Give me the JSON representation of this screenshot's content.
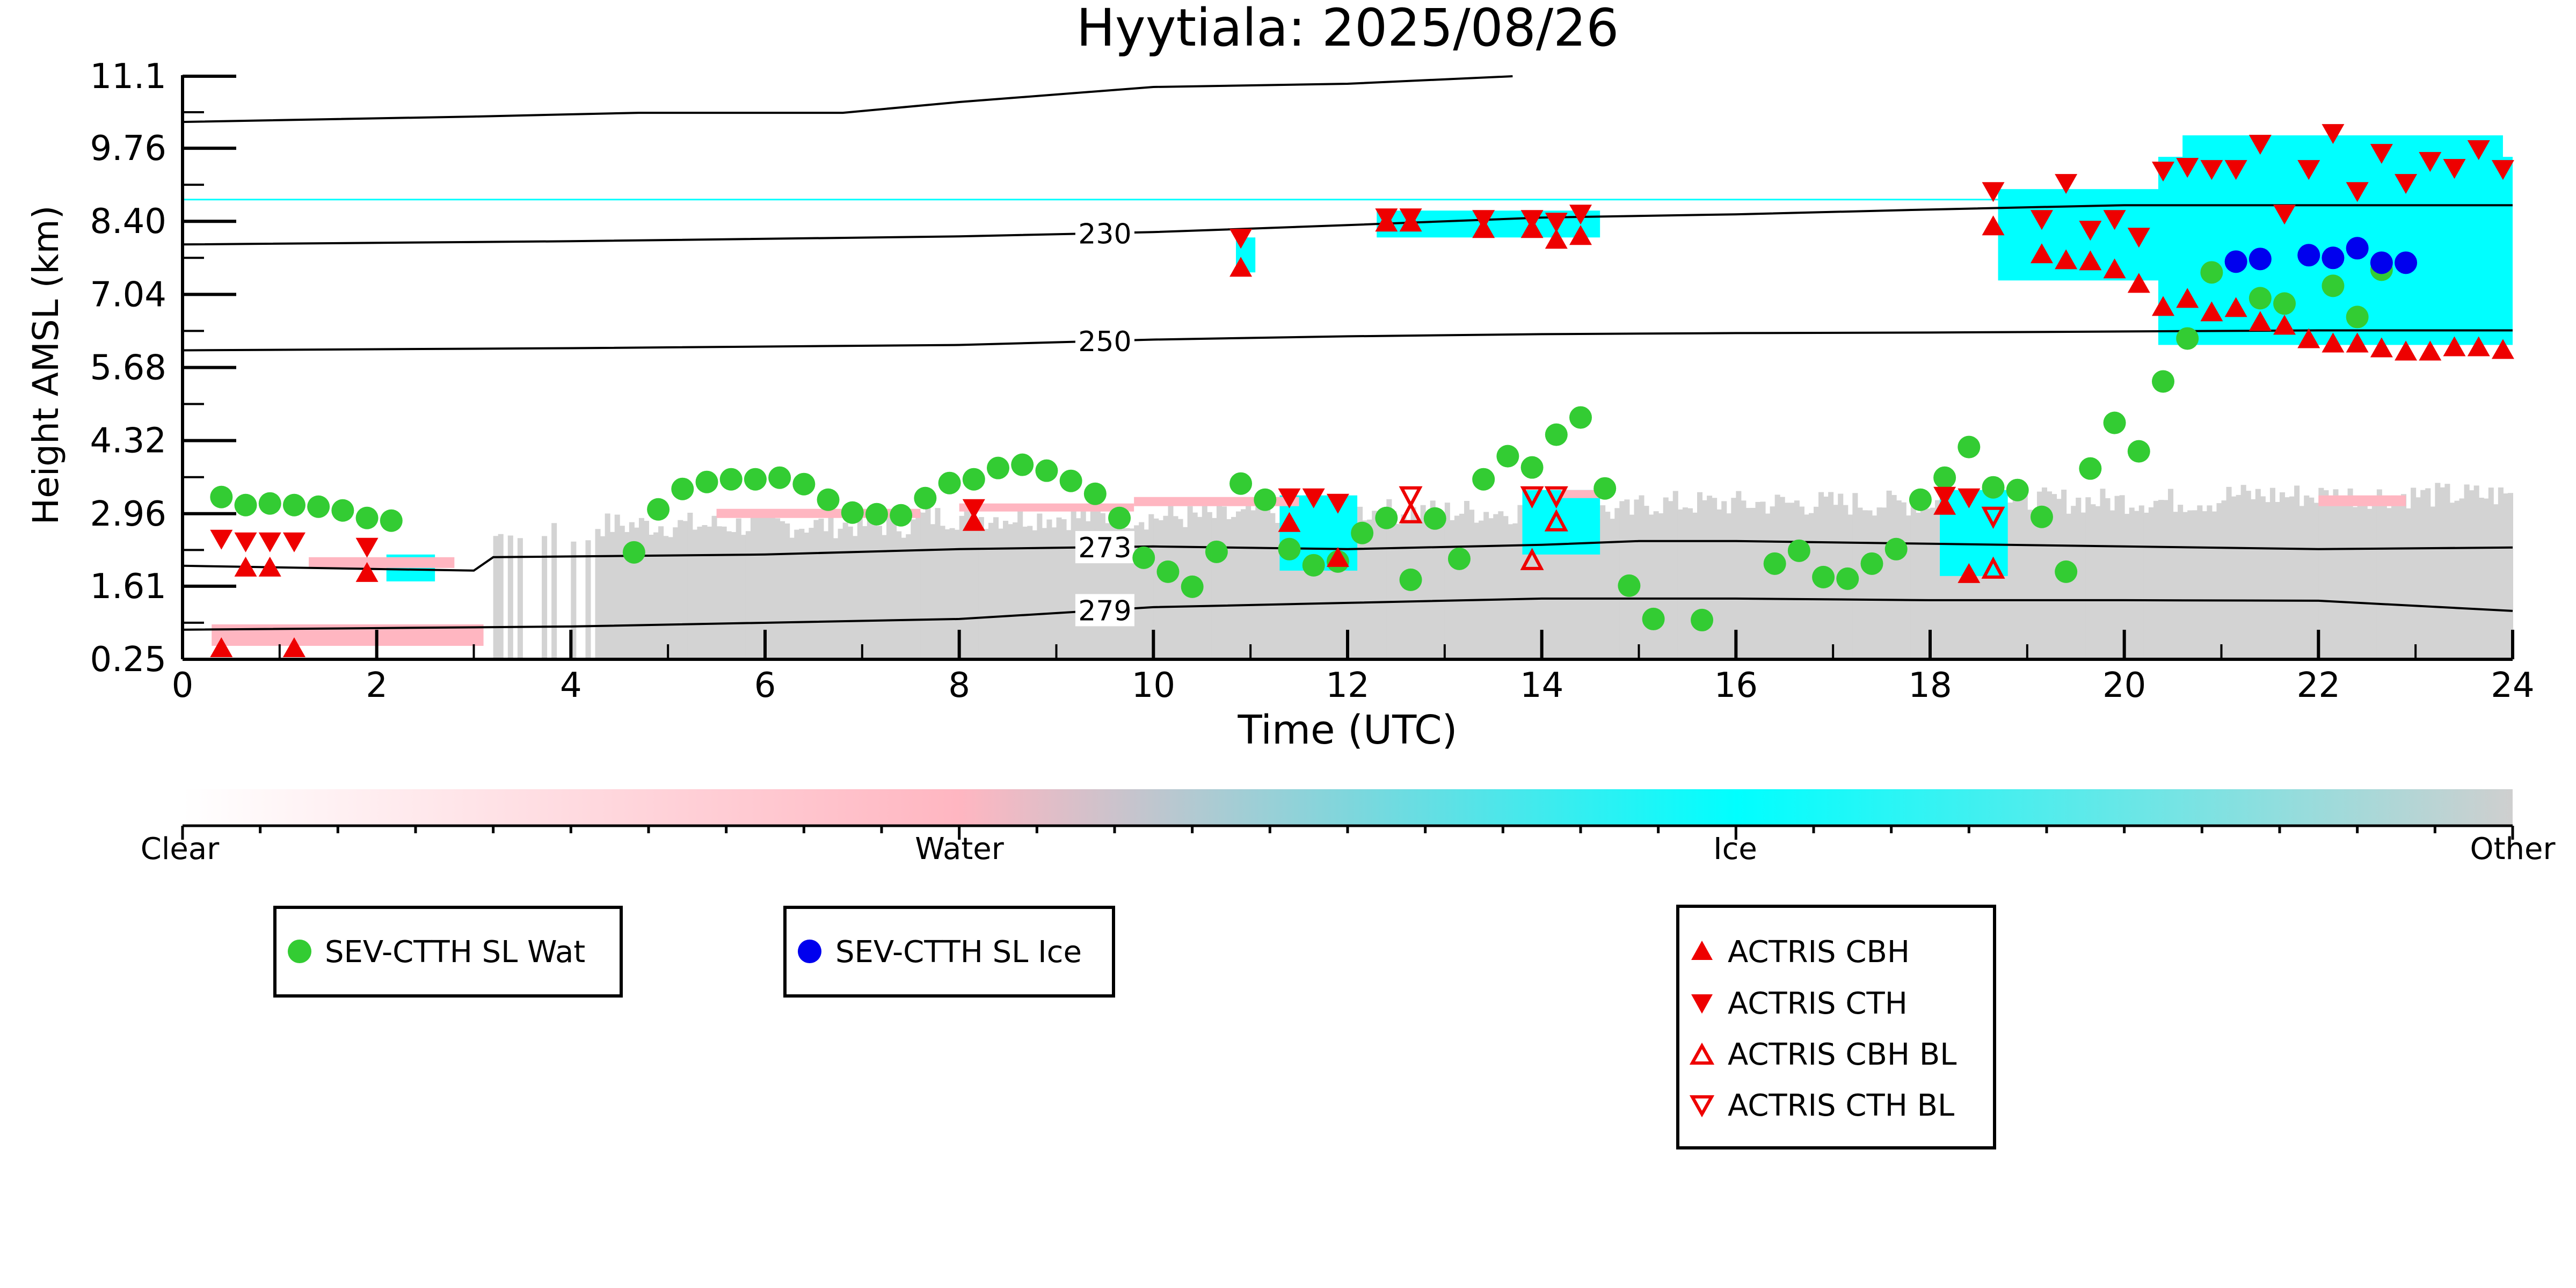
{
  "chart_data": {
    "type": "scatter",
    "title": "Hyytiala: 2025/08/26",
    "xlabel": "Time (UTC)",
    "ylabel": "Height AMSL (km)",
    "xlim": [
      0,
      24
    ],
    "ylim": [
      0.25,
      11.1
    ],
    "x_ticks": [
      "0",
      "2",
      "4",
      "6",
      "8",
      "10",
      "12",
      "14",
      "16",
      "18",
      "20",
      "22",
      "24"
    ],
    "y_ticks": [
      "0.25",
      "1.61",
      "2.96",
      "4.32",
      "5.68",
      "7.04",
      "8.40",
      "9.76",
      "11.1"
    ],
    "y_tick_values": [
      0.25,
      1.61,
      2.96,
      4.32,
      5.68,
      7.04,
      8.4,
      9.76,
      11.1
    ],
    "grid": false,
    "colorbar": {
      "labels": [
        "Clear",
        "Water",
        "Ice",
        "Other"
      ],
      "colors": [
        "#ffffff",
        "#ffb6c1",
        "#00ffff",
        "#cfcfcf"
      ]
    },
    "colors": {
      "water": "#ffb6c1",
      "ice": "#00ffff",
      "other": "#d3d3d3",
      "sev_wat": "#33cc33",
      "sev_ice": "#0000ee",
      "actris": "#ee0000"
    },
    "isotherms": [
      {
        "label": "230",
        "label_x": 9.5,
        "points": [
          [
            0,
            7.97
          ],
          [
            4,
            8.03
          ],
          [
            8,
            8.12
          ],
          [
            10,
            8.2
          ],
          [
            12,
            8.33
          ],
          [
            14,
            8.47
          ],
          [
            16,
            8.53
          ],
          [
            18,
            8.62
          ],
          [
            20,
            8.7
          ],
          [
            22,
            8.7
          ],
          [
            24,
            8.7
          ]
        ]
      },
      {
        "label": "250",
        "label_x": 9.5,
        "points": [
          [
            0,
            6.0
          ],
          [
            4,
            6.04
          ],
          [
            8,
            6.1
          ],
          [
            10,
            6.2
          ],
          [
            12,
            6.26
          ],
          [
            14,
            6.3
          ],
          [
            16,
            6.32
          ],
          [
            18,
            6.33
          ],
          [
            20,
            6.35
          ],
          [
            22,
            6.37
          ],
          [
            24,
            6.37
          ]
        ]
      },
      {
        "label": "273",
        "label_x": 9.5,
        "points": [
          [
            0,
            1.99
          ],
          [
            3,
            1.9
          ],
          [
            3.2,
            2.15
          ],
          [
            6,
            2.2
          ],
          [
            8,
            2.3
          ],
          [
            10,
            2.35
          ],
          [
            12,
            2.3
          ],
          [
            14,
            2.38
          ],
          [
            15,
            2.45
          ],
          [
            16,
            2.45
          ],
          [
            18,
            2.4
          ],
          [
            20,
            2.35
          ],
          [
            22,
            2.3
          ],
          [
            24,
            2.33
          ]
        ]
      },
      {
        "label": "279",
        "label_x": 9.5,
        "points": [
          [
            0,
            0.8
          ],
          [
            4,
            0.86
          ],
          [
            8,
            1.0
          ],
          [
            10,
            1.22
          ],
          [
            12,
            1.3
          ],
          [
            14,
            1.38
          ],
          [
            16,
            1.38
          ],
          [
            18,
            1.35
          ],
          [
            20,
            1.35
          ],
          [
            22,
            1.34
          ],
          [
            24,
            1.15
          ]
        ]
      },
      {
        "label": "",
        "label_x": null,
        "points": [
          [
            0,
            10.25
          ],
          [
            3,
            10.35
          ],
          [
            4.7,
            10.42
          ],
          [
            6.8,
            10.42
          ],
          [
            8,
            10.62
          ],
          [
            10,
            10.9
          ],
          [
            12,
            10.96
          ],
          [
            13.7,
            11.1
          ]
        ]
      }
    ],
    "series": [
      {
        "name": "SEV-CTTH SL Wat",
        "marker": "circle",
        "points": [
          [
            0.4,
            3.27
          ],
          [
            0.65,
            3.12
          ],
          [
            0.9,
            3.15
          ],
          [
            1.15,
            3.12
          ],
          [
            1.4,
            3.09
          ],
          [
            1.65,
            3.02
          ],
          [
            1.9,
            2.88
          ],
          [
            2.15,
            2.83
          ],
          [
            4.65,
            2.24
          ],
          [
            4.9,
            3.04
          ],
          [
            5.15,
            3.42
          ],
          [
            5.4,
            3.55
          ],
          [
            5.65,
            3.6
          ],
          [
            5.9,
            3.6
          ],
          [
            6.15,
            3.63
          ],
          [
            6.4,
            3.51
          ],
          [
            6.65,
            3.22
          ],
          [
            6.9,
            2.98
          ],
          [
            7.15,
            2.95
          ],
          [
            7.4,
            2.93
          ],
          [
            7.65,
            3.25
          ],
          [
            7.9,
            3.53
          ],
          [
            8.15,
            3.6
          ],
          [
            8.4,
            3.81
          ],
          [
            8.65,
            3.87
          ],
          [
            8.9,
            3.76
          ],
          [
            9.15,
            3.57
          ],
          [
            9.4,
            3.33
          ],
          [
            9.65,
            2.88
          ],
          [
            9.9,
            2.14
          ],
          [
            10.15,
            1.88
          ],
          [
            10.4,
            1.6
          ],
          [
            10.65,
            2.25
          ],
          [
            10.9,
            3.52
          ],
          [
            11.15,
            3.22
          ],
          [
            11.4,
            2.3
          ],
          [
            11.65,
            2.0
          ],
          [
            11.9,
            2.07
          ],
          [
            12.15,
            2.6
          ],
          [
            12.4,
            2.88
          ],
          [
            12.65,
            1.73
          ],
          [
            12.9,
            2.87
          ],
          [
            13.15,
            2.12
          ],
          [
            13.4,
            3.6
          ],
          [
            13.65,
            4.03
          ],
          [
            13.9,
            3.82
          ],
          [
            14.15,
            4.43
          ],
          [
            14.4,
            4.75
          ],
          [
            14.65,
            3.43
          ],
          [
            14.9,
            1.62
          ],
          [
            15.15,
            1.0
          ],
          [
            15.65,
            0.98
          ],
          [
            16.4,
            2.03
          ],
          [
            16.65,
            2.27
          ],
          [
            16.9,
            1.78
          ],
          [
            17.15,
            1.75
          ],
          [
            17.4,
            2.03
          ],
          [
            17.65,
            2.3
          ],
          [
            17.9,
            3.22
          ],
          [
            18.15,
            3.63
          ],
          [
            18.4,
            4.2
          ],
          [
            18.65,
            3.45
          ],
          [
            18.9,
            3.4
          ],
          [
            19.15,
            2.9
          ],
          [
            19.4,
            1.88
          ],
          [
            19.65,
            3.8
          ],
          [
            19.9,
            4.65
          ],
          [
            20.15,
            4.12
          ],
          [
            20.4,
            5.42
          ],
          [
            20.65,
            6.22
          ],
          [
            20.9,
            7.45
          ],
          [
            21.4,
            6.97
          ],
          [
            21.65,
            6.87
          ],
          [
            22.15,
            7.2
          ],
          [
            22.4,
            6.62
          ],
          [
            22.65,
            7.5
          ]
        ]
      },
      {
        "name": "SEV-CTTH SL Ice",
        "marker": "circle",
        "points": [
          [
            21.15,
            7.65
          ],
          [
            21.4,
            7.7
          ],
          [
            21.9,
            7.77
          ],
          [
            22.15,
            7.72
          ],
          [
            22.4,
            7.9
          ],
          [
            22.65,
            7.63
          ],
          [
            22.9,
            7.63
          ]
        ]
      },
      {
        "name": "ACTRIS CBH",
        "marker": "triangle-up",
        "points": [
          [
            0.4,
            0.45
          ],
          [
            0.65,
            1.95
          ],
          [
            0.9,
            1.95
          ],
          [
            1.15,
            0.45
          ],
          [
            1.9,
            1.85
          ],
          [
            8.15,
            2.8
          ],
          [
            10.9,
            7.53
          ],
          [
            11.4,
            2.78
          ],
          [
            11.9,
            2.13
          ],
          [
            12.4,
            8.37
          ],
          [
            12.65,
            8.37
          ],
          [
            13.4,
            8.25
          ],
          [
            13.9,
            8.25
          ],
          [
            14.15,
            8.05
          ],
          [
            14.4,
            8.12
          ],
          [
            18.15,
            3.1
          ],
          [
            18.4,
            1.83
          ],
          [
            18.65,
            8.3
          ],
          [
            19.15,
            7.78
          ],
          [
            19.4,
            7.67
          ],
          [
            19.65,
            7.65
          ],
          [
            19.9,
            7.5
          ],
          [
            20.15,
            7.23
          ],
          [
            20.4,
            6.8
          ],
          [
            20.65,
            6.95
          ],
          [
            20.9,
            6.7
          ],
          [
            21.15,
            6.78
          ],
          [
            21.4,
            6.52
          ],
          [
            21.65,
            6.45
          ],
          [
            21.9,
            6.2
          ],
          [
            22.15,
            6.12
          ],
          [
            22.4,
            6.12
          ],
          [
            22.65,
            6.03
          ],
          [
            22.9,
            5.97
          ],
          [
            23.15,
            5.97
          ],
          [
            23.4,
            6.05
          ],
          [
            23.65,
            6.05
          ],
          [
            23.9,
            6.0
          ]
        ]
      },
      {
        "name": "ACTRIS CTH",
        "marker": "triangle-down",
        "points": [
          [
            0.4,
            2.5
          ],
          [
            0.65,
            2.45
          ],
          [
            0.9,
            2.45
          ],
          [
            1.15,
            2.45
          ],
          [
            1.9,
            2.35
          ],
          [
            8.15,
            3.07
          ],
          [
            10.9,
            8.1
          ],
          [
            11.4,
            3.27
          ],
          [
            11.65,
            3.27
          ],
          [
            11.9,
            3.17
          ],
          [
            12.4,
            8.48
          ],
          [
            12.65,
            8.48
          ],
          [
            13.4,
            8.45
          ],
          [
            13.9,
            8.45
          ],
          [
            14.15,
            8.4
          ],
          [
            14.4,
            8.55
          ],
          [
            18.15,
            3.3
          ],
          [
            18.4,
            3.27
          ],
          [
            18.65,
            8.97
          ],
          [
            19.15,
            8.45
          ],
          [
            19.4,
            9.12
          ],
          [
            19.65,
            8.25
          ],
          [
            19.9,
            8.45
          ],
          [
            20.15,
            8.12
          ],
          [
            20.4,
            9.35
          ],
          [
            20.65,
            9.42
          ],
          [
            20.9,
            9.38
          ],
          [
            21.15,
            9.38
          ],
          [
            21.4,
            9.85
          ],
          [
            21.65,
            8.55
          ],
          [
            21.9,
            9.38
          ],
          [
            22.15,
            10.05
          ],
          [
            22.4,
            8.97
          ],
          [
            22.65,
            9.68
          ],
          [
            22.9,
            9.12
          ],
          [
            23.15,
            9.53
          ],
          [
            23.4,
            9.4
          ],
          [
            23.65,
            9.75
          ],
          [
            23.9,
            9.38
          ]
        ]
      },
      {
        "name": "ACTRIS CBH BL",
        "marker": "triangle-up-open",
        "points": [
          [
            12.65,
            2.95
          ],
          [
            13.9,
            2.08
          ],
          [
            14.15,
            2.8
          ],
          [
            18.65,
            1.92
          ]
        ]
      },
      {
        "name": "ACTRIS CTH BL",
        "marker": "triangle-down-open",
        "points": [
          [
            12.65,
            3.3
          ],
          [
            13.9,
            3.3
          ],
          [
            14.15,
            3.3
          ],
          [
            18.65,
            2.92
          ]
        ]
      }
    ],
    "legend_placement": "below plot, three boxes"
  }
}
